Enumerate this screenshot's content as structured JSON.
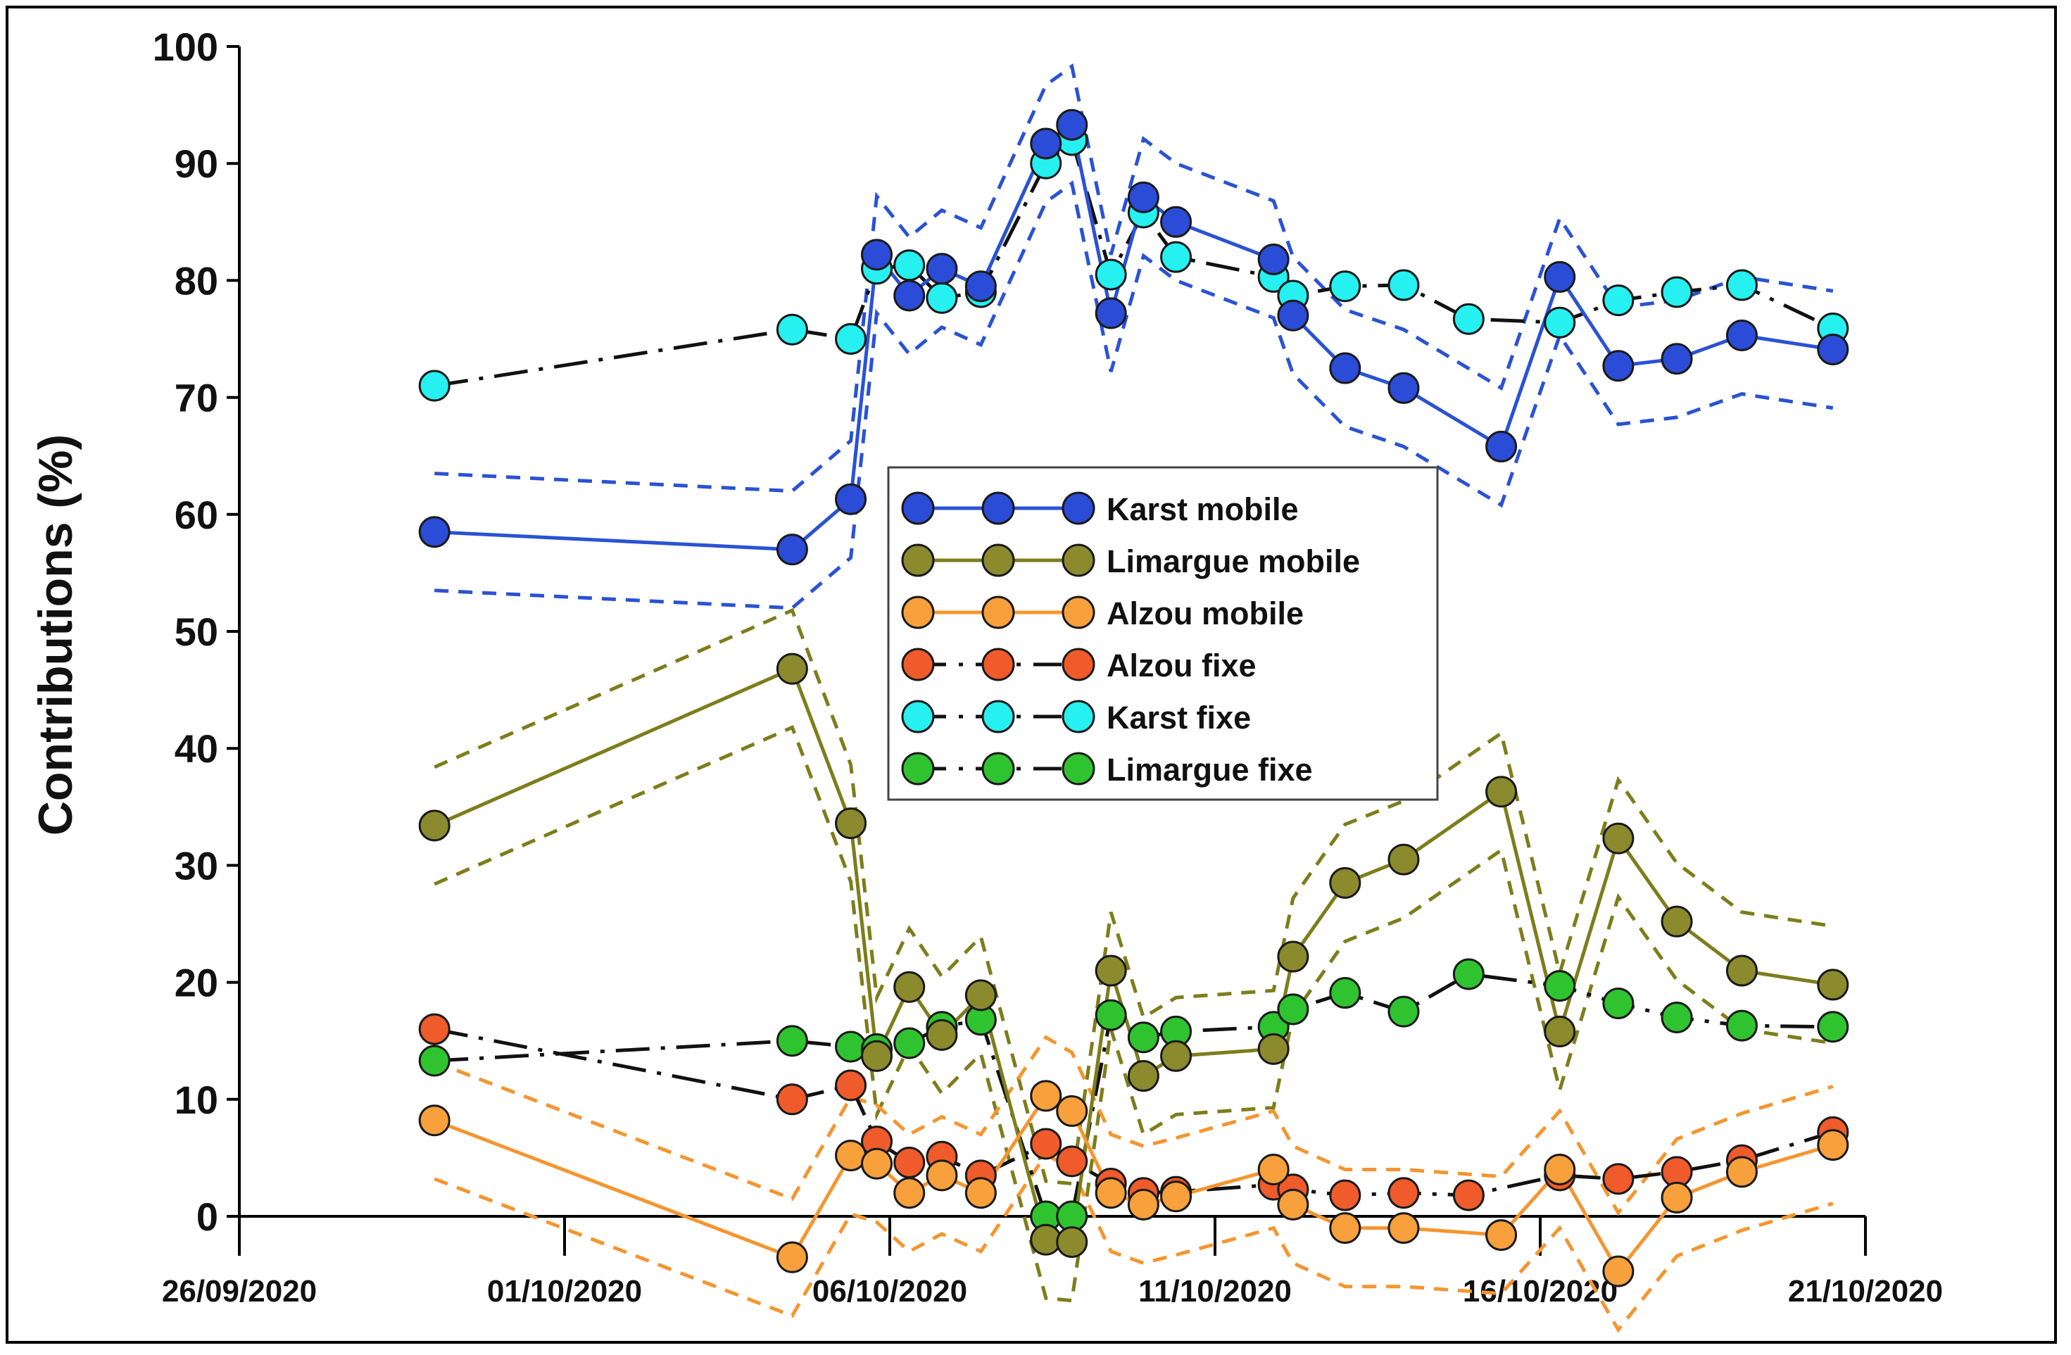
{
  "chart_data": {
    "type": "line",
    "title": "",
    "xlabel": "",
    "ylabel": "Contributions (%)",
    "ylim": [
      0,
      100
    ],
    "yticks": [
      0,
      10,
      20,
      30,
      40,
      50,
      60,
      70,
      80,
      90,
      100
    ],
    "xlim_days": [
      0,
      25
    ],
    "xtick_labels": [
      {
        "day": 0,
        "label": "26/09/2020"
      },
      {
        "day": 5,
        "label": "01/10/2020"
      },
      {
        "day": 10,
        "label": "06/10/2020"
      },
      {
        "day": 15,
        "label": "11/10/2020"
      },
      {
        "day": 20,
        "label": "16/10/2020"
      },
      {
        "day": 25,
        "label": "21/10/2020"
      }
    ],
    "legend_position": "center",
    "series": [
      {
        "name": "Karst mobile",
        "key": "karst_mobile",
        "style": "solid",
        "color": "#2a52d4",
        "marker": "#2b4cd6",
        "x": [
          3.0,
          8.5,
          9.4,
          9.8,
          10.3,
          10.8,
          11.4,
          12.4,
          12.8,
          13.4,
          13.9,
          14.4,
          15.9,
          16.2,
          17.0,
          17.9,
          19.4,
          20.3,
          21.2,
          22.1,
          23.1,
          24.5
        ],
        "y": [
          58.5,
          57.0,
          61.3,
          82.2,
          78.7,
          81.0,
          79.5,
          91.7,
          93.3,
          77.2,
          87.1,
          85.0,
          81.8,
          77.0,
          72.5,
          70.8,
          65.8,
          80.3,
          72.7,
          73.3,
          75.3,
          74.1
        ],
        "upper": [
          63.5,
          62.0,
          66.3,
          87.2,
          83.7,
          86.0,
          84.5,
          96.7,
          98.3,
          82.2,
          92.1,
          90.0,
          86.8,
          82.0,
          77.5,
          75.8,
          70.8,
          85.3,
          77.7,
          78.3,
          80.3,
          79.1
        ],
        "lower": [
          53.5,
          52.0,
          56.3,
          77.2,
          73.7,
          76.0,
          74.5,
          86.7,
          88.3,
          72.2,
          82.1,
          80.0,
          76.8,
          72.0,
          67.5,
          65.8,
          60.8,
          75.3,
          67.7,
          68.3,
          70.3,
          69.1
        ]
      },
      {
        "name": "Limargue mobile",
        "key": "limargue_mobile",
        "style": "solid",
        "color": "#7d7d1c",
        "marker": "#8b8b2e",
        "x": [
          3.0,
          8.5,
          9.4,
          9.8,
          10.3,
          10.8,
          11.4,
          12.4,
          12.8,
          13.4,
          13.9,
          14.4,
          15.9,
          16.2,
          17.0,
          17.9,
          19.4,
          20.3,
          21.2,
          22.1,
          23.1,
          24.5
        ],
        "y": [
          33.4,
          46.8,
          33.6,
          13.7,
          19.6,
          15.5,
          18.9,
          -2.0,
          -2.2,
          21.0,
          12.0,
          13.7,
          14.3,
          22.2,
          28.5,
          30.5,
          36.3,
          15.8,
          32.3,
          25.2,
          21.0,
          19.8
        ],
        "upper": [
          38.4,
          51.8,
          38.6,
          18.7,
          24.6,
          20.5,
          23.9,
          3.0,
          2.8,
          26.0,
          17.0,
          18.7,
          19.3,
          27.2,
          33.5,
          35.5,
          41.3,
          20.8,
          37.3,
          30.2,
          26.0,
          24.8
        ],
        "lower": [
          28.4,
          41.8,
          28.6,
          8.7,
          14.6,
          10.5,
          13.9,
          -7.0,
          -7.2,
          16.0,
          7.0,
          8.7,
          9.3,
          17.2,
          23.5,
          25.5,
          31.3,
          10.8,
          27.3,
          20.2,
          16.0,
          14.8
        ]
      },
      {
        "name": "Alzou mobile",
        "key": "alzou_mobile",
        "style": "solid",
        "color": "#f5952f",
        "marker": "#f7a03c",
        "x": [
          3.0,
          8.5,
          9.4,
          9.8,
          10.3,
          10.8,
          11.4,
          12.4,
          12.8,
          13.4,
          13.9,
          14.4,
          15.9,
          16.2,
          17.0,
          17.9,
          19.4,
          20.3,
          21.2,
          22.1,
          23.1,
          24.5
        ],
        "y": [
          8.2,
          -3.5,
          5.2,
          4.5,
          2.0,
          3.5,
          2.0,
          10.3,
          9.0,
          2.0,
          1.0,
          1.7,
          4.0,
          1.0,
          -1.0,
          -1.0,
          -1.6,
          4.0,
          -4.7,
          1.6,
          3.8,
          6.1
        ],
        "upper": [
          13.2,
          1.5,
          10.2,
          9.5,
          7.0,
          8.5,
          7.0,
          15.3,
          14.0,
          7.0,
          6.0,
          6.7,
          9.0,
          6.0,
          4.0,
          4.0,
          3.4,
          9.0,
          0.3,
          6.6,
          8.8,
          11.1
        ],
        "lower": [
          3.2,
          -8.5,
          0.2,
          -0.5,
          -3.0,
          -1.5,
          -3.0,
          5.3,
          4.0,
          -3.0,
          -4.0,
          -3.3,
          -1.0,
          -4.0,
          -6.0,
          -6.0,
          -6.6,
          -1.0,
          -9.7,
          -3.4,
          -1.2,
          1.1
        ]
      },
      {
        "name": "Alzou fixe",
        "key": "alzou_fixe",
        "style": "dashdot",
        "color": "#111111",
        "marker": "#ef5b2b",
        "x": [
          3.0,
          8.5,
          9.4,
          9.8,
          10.3,
          10.8,
          11.4,
          12.4,
          12.8,
          13.4,
          13.9,
          14.4,
          15.9,
          16.2,
          17.0,
          17.9,
          18.9,
          20.3,
          21.2,
          22.1,
          23.1,
          24.5
        ],
        "y": [
          16.0,
          10.0,
          11.2,
          6.4,
          4.6,
          5.1,
          3.5,
          6.2,
          4.7,
          2.8,
          2.0,
          2.1,
          2.7,
          2.3,
          1.8,
          2.0,
          1.8,
          3.5,
          3.2,
          3.8,
          4.8,
          7.2
        ]
      },
      {
        "name": "Karst fixe",
        "key": "karst_fixe",
        "style": "dashdot",
        "color": "#111111",
        "marker": "#26f0f0",
        "x": [
          3.0,
          8.5,
          9.4,
          9.8,
          10.3,
          10.8,
          11.4,
          12.4,
          12.8,
          13.4,
          13.9,
          14.4,
          15.9,
          16.2,
          17.0,
          17.9,
          18.9,
          20.3,
          21.2,
          22.1,
          23.1,
          24.5
        ],
        "y": [
          71.0,
          75.8,
          75.0,
          81.0,
          81.3,
          78.5,
          79.0,
          90.0,
          92.0,
          80.5,
          85.8,
          82.0,
          80.3,
          78.7,
          79.5,
          79.6,
          76.7,
          76.4,
          78.3,
          79.0,
          79.6,
          75.9
        ]
      },
      {
        "name": "Limargue fixe",
        "key": "limargue_fixe",
        "style": "dashdot",
        "color": "#111111",
        "marker": "#2fc42f",
        "x": [
          3.0,
          8.5,
          9.4,
          9.8,
          10.3,
          10.8,
          11.4,
          12.4,
          12.8,
          13.4,
          13.9,
          14.4,
          15.9,
          16.2,
          17.0,
          17.9,
          18.9,
          20.3,
          21.2,
          22.1,
          23.1,
          24.5
        ],
        "y": [
          13.3,
          15.0,
          14.5,
          14.3,
          14.8,
          16.2,
          16.8,
          0.0,
          0.0,
          17.2,
          15.3,
          15.8,
          16.2,
          17.7,
          19.1,
          17.5,
          20.7,
          19.7,
          18.2,
          17.0,
          16.3,
          16.2
        ]
      }
    ]
  }
}
